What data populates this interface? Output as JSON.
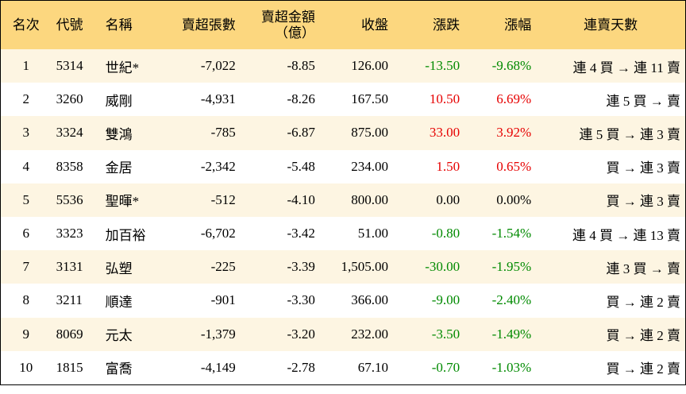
{
  "table": {
    "header": [
      "名次",
      "代號",
      "名稱",
      "賣超張數",
      "賣超金額\n（億）",
      "收盤",
      "漲跌",
      "漲幅",
      "連賣天數"
    ],
    "rows": [
      [
        "1",
        "5314",
        "世紀*",
        "-7,022",
        "-8.85",
        "126.00",
        "-13.50",
        "-9.68%",
        "連 4 買 → 連 11 賣"
      ],
      [
        "2",
        "3260",
        "威剛",
        "-4,931",
        "-8.26",
        "167.50",
        "10.50",
        "6.69%",
        "連 5 買 → 賣"
      ],
      [
        "3",
        "3324",
        "雙鴻",
        "-785",
        "-6.87",
        "875.00",
        "33.00",
        "3.92%",
        "連 5 買 → 連 3 賣"
      ],
      [
        "4",
        "8358",
        "金居",
        "-2,342",
        "-5.48",
        "234.00",
        "1.50",
        "0.65%",
        "買 → 連 3 賣"
      ],
      [
        "5",
        "5536",
        "聖暉*",
        "-512",
        "-4.10",
        "800.00",
        "0.00",
        "0.00%",
        "買 → 連 3 賣"
      ],
      [
        "6",
        "3323",
        "加百裕",
        "-6,702",
        "-3.42",
        "51.00",
        "-0.80",
        "-1.54%",
        "連 4 買 → 連 13 賣"
      ],
      [
        "7",
        "3131",
        "弘塑",
        "-225",
        "-3.39",
        "1,505.00",
        "-30.00",
        "-1.95%",
        "連 3 買 → 賣"
      ],
      [
        "8",
        "3211",
        "順達",
        "-901",
        "-3.30",
        "366.00",
        "-9.00",
        "-2.40%",
        "買 → 連 2 賣"
      ],
      [
        "9",
        "8069",
        "元太",
        "-1,379",
        "-3.20",
        "232.00",
        "-3.50",
        "-1.49%",
        "買 → 連 2 賣"
      ],
      [
        "10",
        "1815",
        "富喬",
        "-4,149",
        "-2.78",
        "67.10",
        "-0.70",
        "-1.03%",
        "買 → 連 2 賣"
      ]
    ]
  }
}
